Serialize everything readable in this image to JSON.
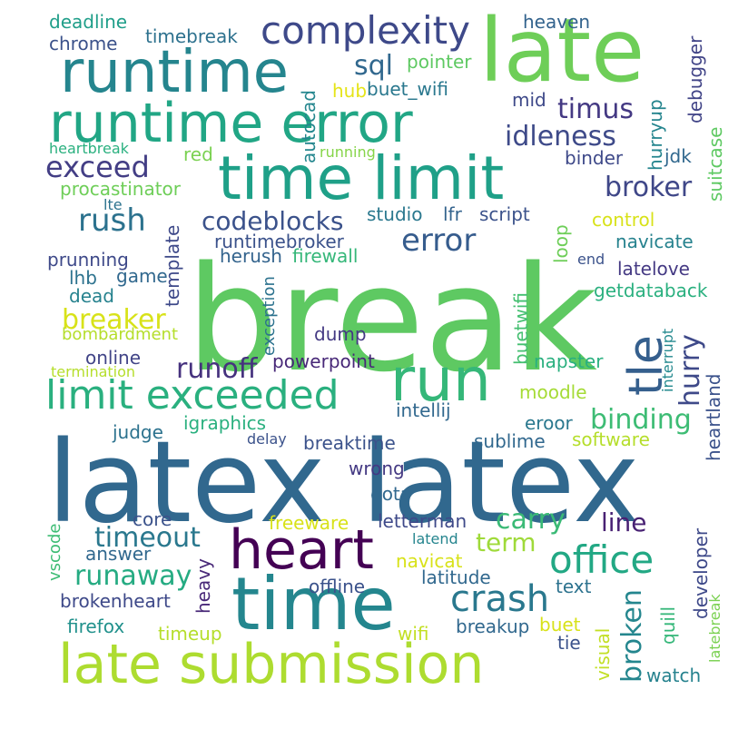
{
  "words": [
    {
      "text": "break",
      "color": "#5ec962"
    },
    {
      "text": "latex latex",
      "color": "#31688e"
    },
    {
      "text": "late",
      "color": "#6ece58"
    },
    {
      "text": "runtime error",
      "color": "#21a685"
    },
    {
      "text": "runtime",
      "color": "#25858e"
    },
    {
      "text": "time limit",
      "color": "#1fa088"
    },
    {
      "text": "time",
      "color": "#24868e"
    },
    {
      "text": "late submission",
      "color": "#addc30"
    },
    {
      "text": "heart",
      "color": "#440154"
    },
    {
      "text": "run",
      "color": "#35b779"
    },
    {
      "text": "limit exceeded",
      "color": "#2ab07f"
    },
    {
      "text": "complexity",
      "color": "#3e4989"
    },
    {
      "text": "tle",
      "color": "#355f8d"
    },
    {
      "text": "office",
      "color": "#22a884"
    },
    {
      "text": "crash",
      "color": "#2a788e"
    },
    {
      "text": "exceed",
      "color": "#433e85"
    },
    {
      "text": "rush",
      "color": "#2c728e"
    },
    {
      "text": "error",
      "color": "#365c8d"
    },
    {
      "text": "codeblocks",
      "color": "#3b528b"
    },
    {
      "text": "broker",
      "color": "#3f4788"
    },
    {
      "text": "idleness",
      "color": "#3e4a89"
    },
    {
      "text": "timus",
      "color": "#443983"
    },
    {
      "text": "sql",
      "color": "#31688e"
    },
    {
      "text": "runaway",
      "color": "#25ab82"
    },
    {
      "text": "timeout",
      "color": "#2a788e"
    },
    {
      "text": "binding",
      "color": "#3dbc74"
    },
    {
      "text": "breaker",
      "color": "#d8e219"
    },
    {
      "text": "runoff",
      "color": "#46327e"
    },
    {
      "text": "broken",
      "color": "#24868e"
    },
    {
      "text": "hurry",
      "color": "#3e4989"
    },
    {
      "text": "carry",
      "color": "#3aba76"
    },
    {
      "text": "term",
      "color": "#9fda3a"
    },
    {
      "text": "line",
      "color": "#482173"
    },
    {
      "text": "deadline",
      "color": "#1f9e89"
    },
    {
      "text": "chrome",
      "color": "#3b528b"
    },
    {
      "text": "timebreak",
      "color": "#2d718e"
    },
    {
      "text": "heaven",
      "color": "#33638d"
    },
    {
      "text": "pointer",
      "color": "#5ec962"
    },
    {
      "text": "hub",
      "color": "#e5e419"
    },
    {
      "text": "buet_wifi",
      "color": "#2a788e"
    },
    {
      "text": "mid",
      "color": "#3e4989"
    },
    {
      "text": "debugger",
      "color": "#414487"
    },
    {
      "text": "hurryup",
      "color": "#25858e"
    },
    {
      "text": "suitcase",
      "color": "#5ec962"
    },
    {
      "text": "jdk",
      "color": "#31688e"
    },
    {
      "text": "binder",
      "color": "#3e4989"
    },
    {
      "text": "autocad",
      "color": "#24868e"
    },
    {
      "text": "running",
      "color": "#86d549"
    },
    {
      "text": "heartbreak",
      "color": "#2ab07f"
    },
    {
      "text": "red",
      "color": "#7ad151"
    },
    {
      "text": "procastinator",
      "color": "#6ece58"
    },
    {
      "text": "lte",
      "color": "#2c728e"
    },
    {
      "text": "studio",
      "color": "#2a788e"
    },
    {
      "text": "lfr",
      "color": "#33638d"
    },
    {
      "text": "script",
      "color": "#3b528b"
    },
    {
      "text": "control",
      "color": "#d8e219"
    },
    {
      "text": "template",
      "color": "#3e4989"
    },
    {
      "text": "runtimebroker",
      "color": "#3b528b"
    },
    {
      "text": "loop",
      "color": "#6ece58"
    },
    {
      "text": "navicate",
      "color": "#26828e"
    },
    {
      "text": "prunning",
      "color": "#3e4989"
    },
    {
      "text": "herush",
      "color": "#33638d"
    },
    {
      "text": "firewall",
      "color": "#35b779"
    },
    {
      "text": "end",
      "color": "#3b528b"
    },
    {
      "text": "latelove",
      "color": "#443983"
    },
    {
      "text": "lhb",
      "color": "#2c728e"
    },
    {
      "text": "game",
      "color": "#31688e"
    },
    {
      "text": "getdataback",
      "color": "#2ab07f"
    },
    {
      "text": "dead",
      "color": "#26828e"
    },
    {
      "text": "buetwifi",
      "color": "#44bf70"
    },
    {
      "text": "exception",
      "color": "#2c728e"
    },
    {
      "text": "interrupt",
      "color": "#23898e"
    },
    {
      "text": "bombardment",
      "color": "#b5de2b"
    },
    {
      "text": "dump",
      "color": "#443983"
    },
    {
      "text": "online",
      "color": "#414487"
    },
    {
      "text": "powerpoint",
      "color": "#482878"
    },
    {
      "text": "termination",
      "color": "#b5de2b"
    },
    {
      "text": "napster",
      "color": "#2ab07f"
    },
    {
      "text": "heartland",
      "color": "#3b528b"
    },
    {
      "text": "moodle",
      "color": "#a5db36"
    },
    {
      "text": "intellij",
      "color": "#31688e"
    },
    {
      "text": "judge",
      "color": "#2c728e"
    },
    {
      "text": "igraphics",
      "color": "#2ab07f"
    },
    {
      "text": "eroor",
      "color": "#2a788e"
    },
    {
      "text": "software",
      "color": "#b5de2b"
    },
    {
      "text": "delay",
      "color": "#3b528b"
    },
    {
      "text": "breaktime",
      "color": "#3b528b"
    },
    {
      "text": "sublime",
      "color": "#31688e"
    },
    {
      "text": "wrong",
      "color": "#443983"
    },
    {
      "text": "dota",
      "color": "#31688e"
    },
    {
      "text": "core",
      "color": "#3b528b"
    },
    {
      "text": "letterman",
      "color": "#3e4989"
    },
    {
      "text": "freeware",
      "color": "#d8e219"
    },
    {
      "text": "vscode",
      "color": "#3dbc74"
    },
    {
      "text": "latend",
      "color": "#25858e"
    },
    {
      "text": "developer",
      "color": "#3e4989"
    },
    {
      "text": "answer",
      "color": "#31688e"
    },
    {
      "text": "navicat",
      "color": "#d8e219"
    },
    {
      "text": "latitude",
      "color": "#31688e"
    },
    {
      "text": "offline",
      "color": "#3b528b"
    },
    {
      "text": "text",
      "color": "#2c728e"
    },
    {
      "text": "heavy",
      "color": "#482878"
    },
    {
      "text": "brokenheart",
      "color": "#3e4989"
    },
    {
      "text": "quill",
      "color": "#35b779"
    },
    {
      "text": "latebreak",
      "color": "#7ad151"
    },
    {
      "text": "firefox",
      "color": "#21918c"
    },
    {
      "text": "timeup",
      "color": "#b5de2b"
    },
    {
      "text": "wifi",
      "color": "#c2df23"
    },
    {
      "text": "breakup",
      "color": "#31688e"
    },
    {
      "text": "buet",
      "color": "#d8e219"
    },
    {
      "text": "visual",
      "color": "#c2df23"
    },
    {
      "text": "tie",
      "color": "#3b528b"
    },
    {
      "text": "watch",
      "color": "#26828e"
    }
  ]
}
